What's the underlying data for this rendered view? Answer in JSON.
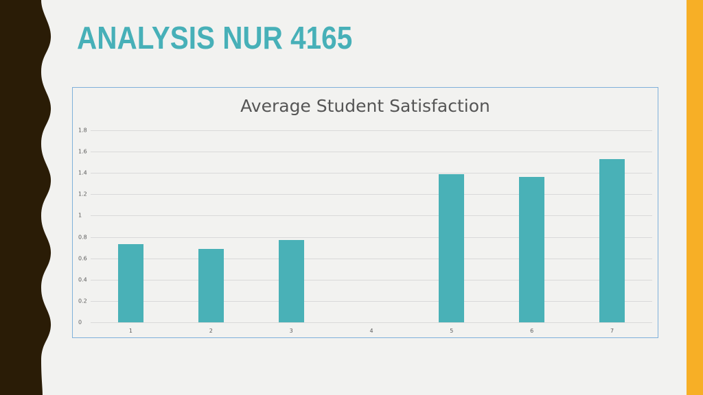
{
  "slide": {
    "title": "ANALYSIS NUR 4165",
    "colors": {
      "background": "#f2f2f0",
      "left_band": "#2a1c06",
      "right_band": "#f7af26",
      "title": "#47b0b8",
      "bar": "#49b1b7",
      "chart_border": "#7fb0da"
    }
  },
  "chart_data": {
    "type": "bar",
    "title": "Average Student Satisfaction",
    "categories": [
      "1",
      "2",
      "3",
      "4",
      "5",
      "6",
      "7"
    ],
    "values": [
      0.73,
      0.69,
      0.77,
      0,
      1.39,
      1.36,
      1.53
    ],
    "xlabel": "",
    "ylabel": "",
    "ylim": [
      0,
      1.8
    ],
    "yticks": [
      "0",
      "0.2",
      "0.4",
      "0.6",
      "0.8",
      "1",
      "1.2",
      "1.4",
      "1.6",
      "1.8"
    ],
    "grid": true,
    "legend": "none"
  }
}
